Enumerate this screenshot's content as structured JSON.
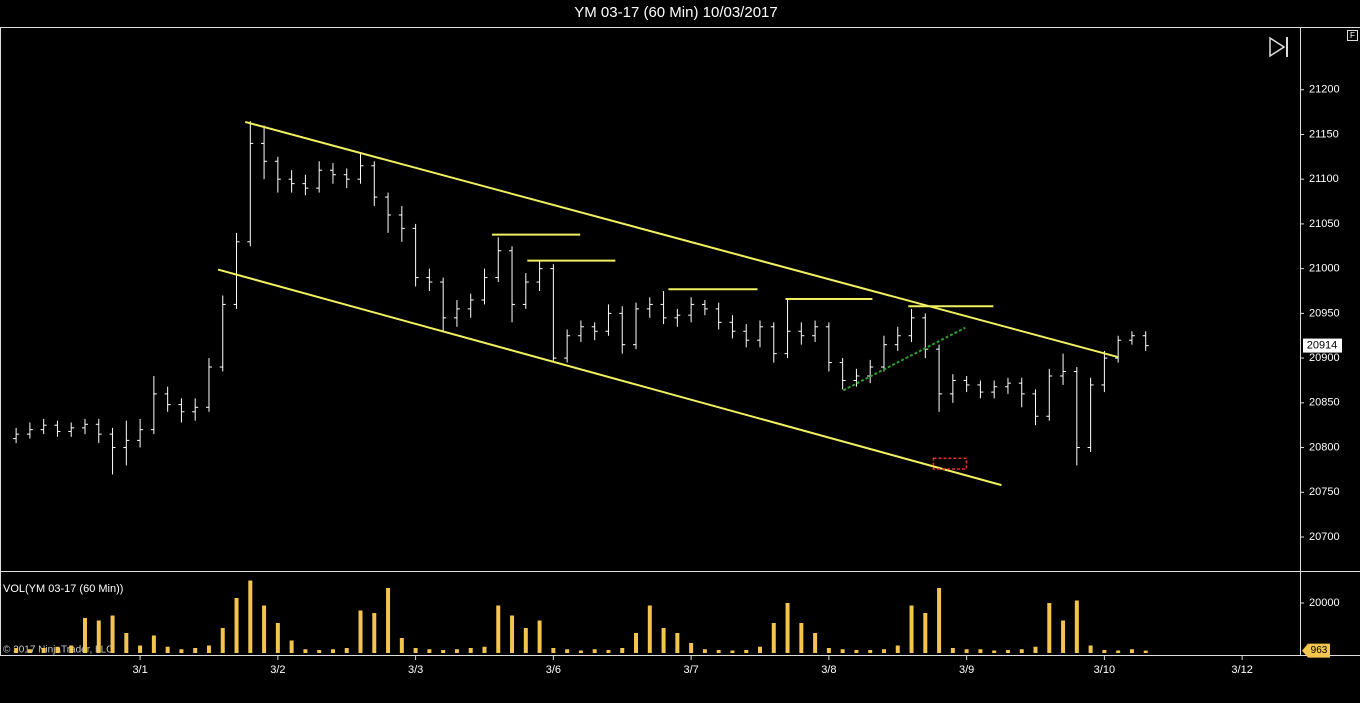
{
  "chart_data": [
    {
      "type": "ohlc",
      "title": "YM 03-17 (60 Min)  10/03/2017",
      "color": "#ffffff",
      "x": [
        0.1,
        0.2,
        0.3,
        0.4,
        0.5,
        0.6,
        0.7,
        0.8,
        0.9,
        1.0,
        1.1,
        1.2,
        1.3,
        1.4,
        1.5,
        1.6,
        1.7,
        1.8,
        1.9,
        2.0,
        2.1,
        2.2,
        2.3,
        2.4,
        2.5,
        2.6,
        2.7,
        2.8,
        2.9,
        3.0,
        3.1,
        3.2,
        3.3,
        3.4,
        3.5,
        3.6,
        3.7,
        3.8,
        3.9,
        4.0,
        4.1,
        4.2,
        4.3,
        4.4,
        4.5,
        4.6,
        4.7,
        4.8,
        4.9,
        5.0,
        5.1,
        5.2,
        5.3,
        5.4,
        5.5,
        5.6,
        5.7,
        5.8,
        5.9,
        6.0,
        6.1,
        6.2,
        6.3,
        6.4,
        6.5,
        6.6,
        6.7,
        6.8,
        6.9,
        7.0,
        7.1,
        7.2,
        7.3,
        7.4,
        7.5,
        7.6,
        7.7,
        7.8,
        7.9,
        8.0,
        8.1,
        8.2,
        8.3
      ],
      "open": [
        20810,
        20815,
        20820,
        20825,
        20818,
        20822,
        20826,
        20815,
        20800,
        20808,
        20820,
        20860,
        20848,
        20840,
        20845,
        20890,
        20960,
        21030,
        21140,
        21120,
        21100,
        21095,
        21090,
        21110,
        21105,
        21100,
        21115,
        21080,
        21060,
        21045,
        20990,
        20985,
        20945,
        20955,
        20965,
        20990,
        21020,
        20960,
        20985,
        21000,
        20900,
        20925,
        20935,
        20930,
        20950,
        20915,
        20955,
        20960,
        20945,
        20948,
        20960,
        20955,
        20940,
        20930,
        20920,
        20935,
        20905,
        20930,
        20925,
        20935,
        20895,
        20875,
        20880,
        20890,
        20915,
        20925,
        20945,
        20910,
        20860,
        20875,
        20870,
        20862,
        20868,
        20872,
        20860,
        20835,
        20880,
        20885,
        20800,
        20870,
        20900,
        20920,
        20925
      ],
      "high": [
        20822,
        20828,
        20832,
        20830,
        20828,
        20832,
        20832,
        20822,
        20830,
        20832,
        20880,
        20868,
        20855,
        20855,
        20900,
        20970,
        21040,
        21165,
        21160,
        21125,
        21110,
        21105,
        21120,
        21118,
        21112,
        21130,
        21120,
        21085,
        21070,
        21050,
        21000,
        20990,
        20965,
        20972,
        21000,
        21035,
        21025,
        20995,
        21008,
        21005,
        20932,
        20942,
        20940,
        20960,
        20958,
        20962,
        20968,
        20975,
        20955,
        20968,
        20965,
        20962,
        20948,
        20938,
        20942,
        20940,
        20965,
        20940,
        20942,
        20940,
        20900,
        20888,
        20898,
        20925,
        20935,
        20955,
        20950,
        20915,
        20882,
        20880,
        20875,
        20875,
        20878,
        20878,
        20865,
        20888,
        20905,
        20890,
        20878,
        20908,
        20925,
        20930,
        20930
      ],
      "low": [
        20805,
        20810,
        20815,
        20812,
        20812,
        20815,
        20805,
        20770,
        20780,
        20800,
        20815,
        20840,
        20828,
        20830,
        20840,
        20885,
        20955,
        21025,
        21100,
        21085,
        21085,
        21082,
        21085,
        21095,
        21090,
        21095,
        21070,
        21040,
        21030,
        20980,
        20975,
        20930,
        20935,
        20945,
        20960,
        20985,
        20940,
        20955,
        20975,
        20895,
        20895,
        20918,
        20920,
        20925,
        20905,
        20910,
        20945,
        20938,
        20935,
        20940,
        20948,
        20932,
        20922,
        20912,
        20912,
        20895,
        20900,
        20915,
        20918,
        20885,
        20865,
        20868,
        20872,
        20885,
        20908,
        20918,
        20900,
        20840,
        20850,
        20862,
        20855,
        20855,
        20860,
        20845,
        20825,
        20830,
        20870,
        20780,
        20795,
        20862,
        20895,
        20915,
        20908
      ],
      "close": [
        20815,
        20820,
        20825,
        20818,
        20822,
        20826,
        20815,
        20800,
        20808,
        20820,
        20860,
        20848,
        20840,
        20845,
        20890,
        20960,
        21030,
        21140,
        21120,
        21100,
        21095,
        21090,
        21110,
        21105,
        21100,
        21115,
        21080,
        21060,
        21045,
        20990,
        20985,
        20945,
        20955,
        20965,
        20990,
        21020,
        20960,
        20985,
        21000,
        20900,
        20925,
        20935,
        20930,
        20950,
        20915,
        20955,
        20960,
        20945,
        20948,
        20960,
        20955,
        20940,
        20930,
        20920,
        20935,
        20905,
        20930,
        20925,
        20935,
        20895,
        20875,
        20880,
        20890,
        20915,
        20925,
        20945,
        20910,
        20860,
        20875,
        20870,
        20862,
        20868,
        20872,
        20860,
        20835,
        20880,
        20885,
        20800,
        20870,
        20900,
        20920,
        20925,
        20914
      ],
      "xlim": [
        -0.017,
        9.42
      ],
      "xticks": [
        {
          "value": 1,
          "label": "3/1"
        },
        {
          "value": 2,
          "label": "3/2"
        },
        {
          "value": 3,
          "label": "3/3"
        },
        {
          "value": 4,
          "label": "3/6"
        },
        {
          "value": 5,
          "label": "3/7"
        },
        {
          "value": 6,
          "label": "3/8"
        },
        {
          "value": 7,
          "label": "3/9"
        },
        {
          "value": 8,
          "label": "3/10"
        },
        {
          "value": 9,
          "label": "3/12"
        }
      ],
      "ylim": [
        20662,
        21269
      ],
      "yticks": [
        20700,
        20750,
        20800,
        20850,
        20900,
        20950,
        21000,
        21050,
        21100,
        21150,
        21200
      ],
      "lines": [
        {
          "x": [
            1.763,
            8.102
          ],
          "y": [
            21164,
            20901
          ],
          "color": "#f0f060"
        },
        {
          "x": [
            1.566,
            7.253
          ],
          "y": [
            20999,
            20758
          ],
          "color": "#f0f060"
        },
        {
          "x": [
            3.555,
            4.195
          ],
          "y": [
            21038,
            21038
          ],
          "color": "#f0f060"
        },
        {
          "x": [
            3.811,
            4.45
          ],
          "y": [
            21009,
            21009
          ],
          "color": "#f0f060"
        },
        {
          "x": [
            4.835,
            5.482
          ],
          "y": [
            20977,
            20977
          ],
          "color": "#f0f060"
        },
        {
          "x": [
            5.685,
            6.316
          ],
          "y": [
            20966,
            20966
          ],
          "color": "#f0f060"
        },
        {
          "x": [
            6.577,
            7.194
          ],
          "y": [
            20958,
            20958
          ],
          "color": "#f0f060"
        },
        {
          "x": [
            6.105,
            6.99
          ],
          "y": [
            20864,
            20934
          ],
          "color": "#2e9e2e",
          "dashed": true
        }
      ],
      "boxes": [
        {
          "x": [
            6.759,
            6.998
          ],
          "y": [
            20788,
            20776
          ],
          "color": "#e03030"
        }
      ]
    },
    {
      "type": "bar",
      "title": "VOL(YM 03-17 (60 Min))",
      "color": "#f3c44e",
      "values": [
        2000,
        1500,
        2000,
        2500,
        3000,
        14000,
        13000,
        15000,
        8000,
        3000,
        7000,
        2500,
        1500,
        2000,
        3000,
        10000,
        22000,
        29000,
        19000,
        12000,
        5000,
        1500,
        1200,
        1500,
        2000,
        17000,
        16000,
        26000,
        6000,
        2000,
        1500,
        1200,
        1500,
        2000,
        2500,
        19000,
        15000,
        10000,
        13000,
        2000,
        1500,
        1000,
        1500,
        1200,
        2000,
        8000,
        19000,
        10000,
        8000,
        4000,
        1500,
        1200,
        1000,
        1200,
        2500,
        12000,
        20000,
        12000,
        8000,
        2000,
        1500,
        1200,
        1200,
        1500,
        3000,
        19000,
        16000,
        26000,
        2000,
        1500,
        1500,
        1000,
        1200,
        1500,
        2500,
        20000,
        13000,
        21000,
        3000,
        1200,
        1000,
        1500,
        963
      ],
      "ylim": [
        0,
        32000
      ],
      "yticks": [
        20000
      ]
    }
  ],
  "watermark": "© 2017 NinjaTrader, LLC",
  "button": "F"
}
